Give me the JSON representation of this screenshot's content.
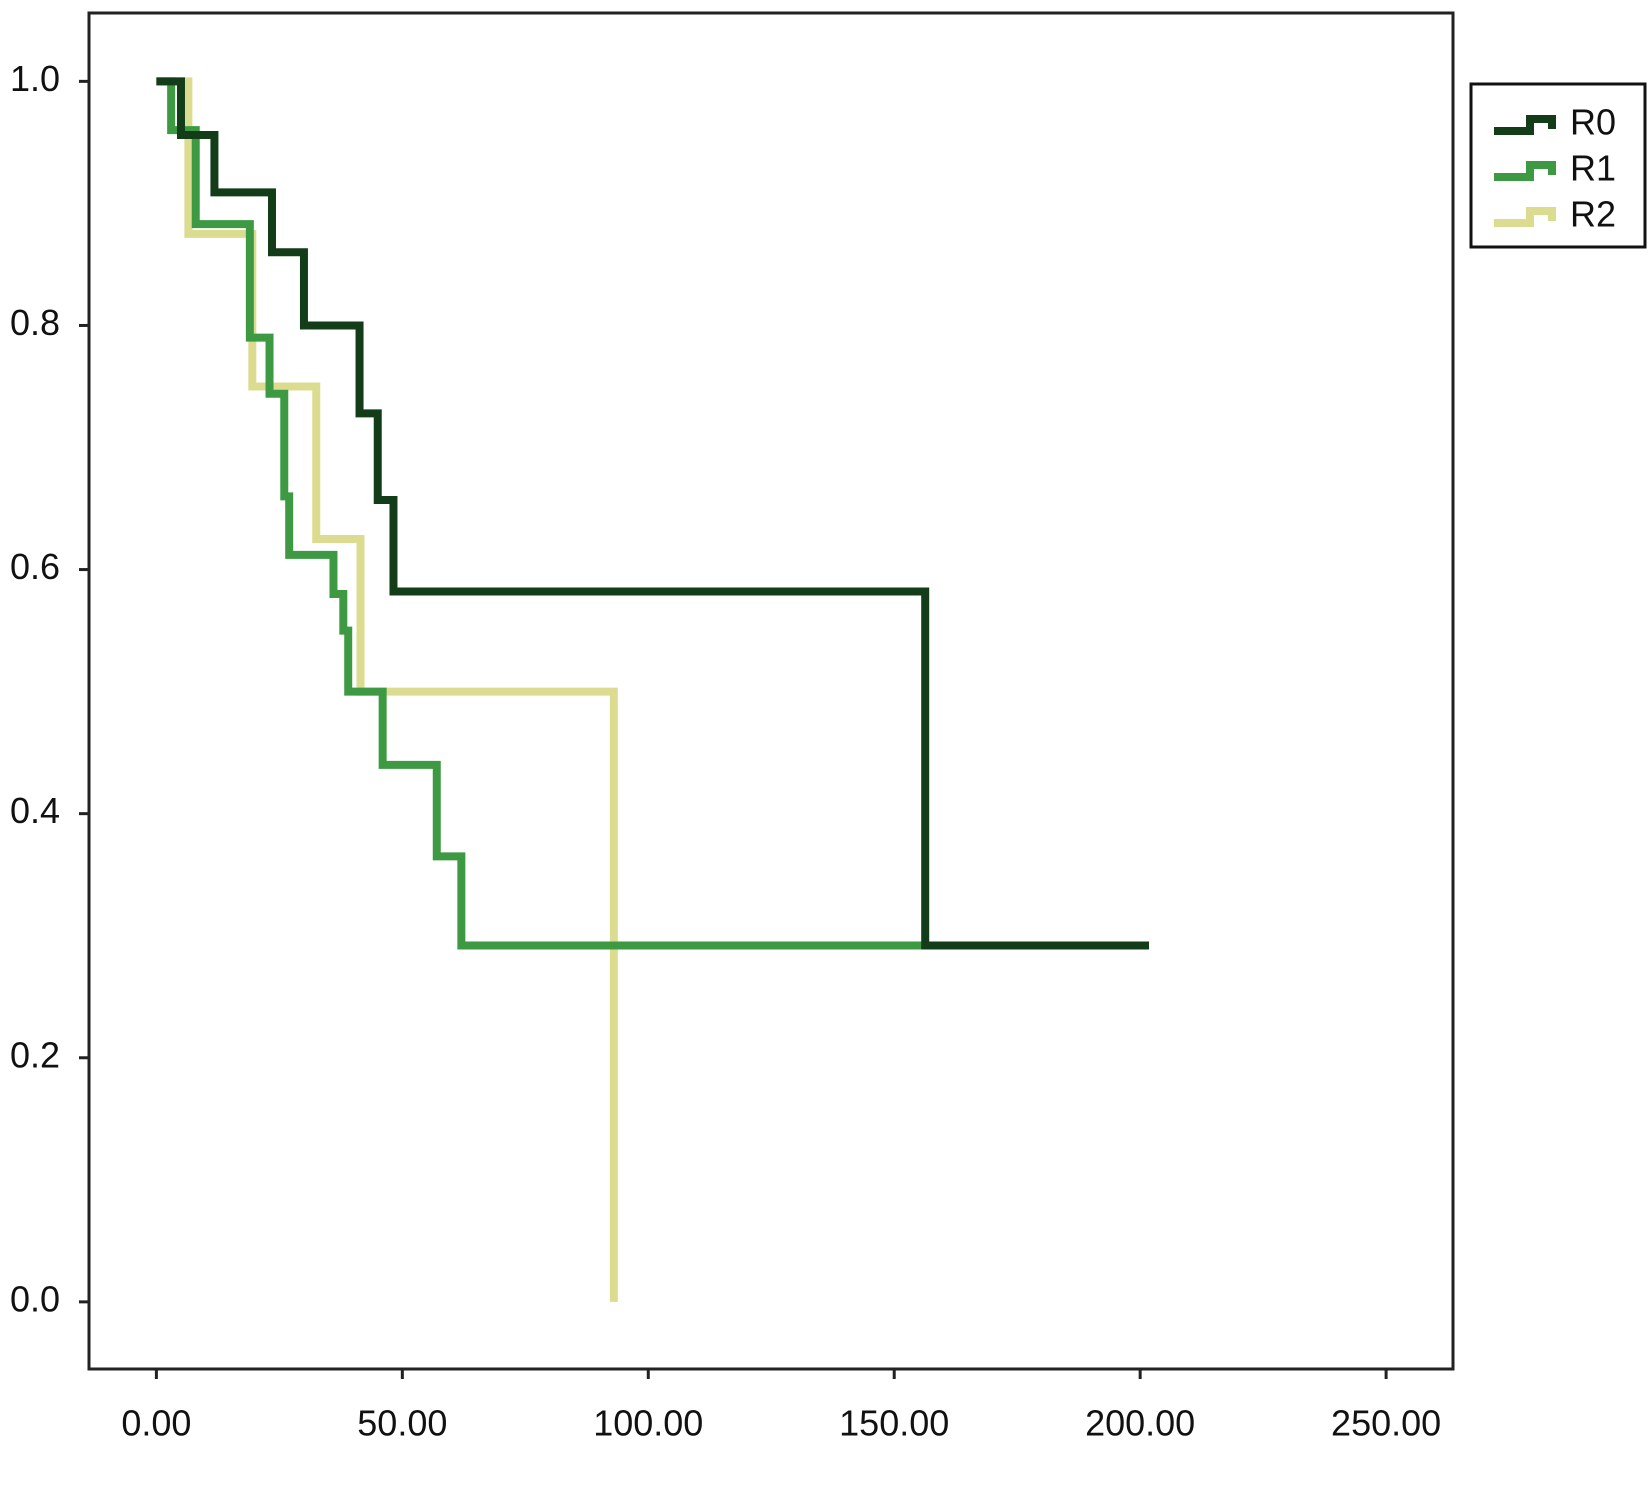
{
  "chart_data": {
    "type": "step",
    "series": [
      {
        "name": "R0",
        "color": "#123d18",
        "x": [
          0,
          5,
          11.8,
          23.5,
          30,
          41.3,
          45,
          48.2,
          156.3,
          201.8
        ],
        "values": [
          1.0,
          0.956,
          0.909,
          0.86,
          0.8,
          0.728,
          0.657,
          0.582,
          0.292,
          0.292
        ]
      },
      {
        "name": "R1",
        "color": "#3d9a42",
        "x": [
          0,
          3,
          8,
          19,
          23,
          26,
          27,
          36,
          38,
          39,
          46,
          57,
          62,
          168
        ],
        "values": [
          1.0,
          0.96,
          0.883,
          0.79,
          0.744,
          0.66,
          0.612,
          0.58,
          0.55,
          0.5,
          0.44,
          0.365,
          0.292,
          0.292
        ]
      },
      {
        "name": "R2",
        "color": "#dcdc90",
        "x": [
          0,
          6.5,
          19.5,
          32.5,
          41.5,
          93
        ],
        "values": [
          1.0,
          0.875,
          0.75,
          0.625,
          0.5,
          0.0
        ]
      }
    ],
    "xlim": [
      -13.7,
      263.6
    ],
    "ylim": [
      -0.055,
      1.056
    ],
    "xticks": [
      {
        "value": 0,
        "label": "0.00"
      },
      {
        "value": 50,
        "label": "50.00"
      },
      {
        "value": 100,
        "label": "100.00"
      },
      {
        "value": 150,
        "label": "150.00"
      },
      {
        "value": 200,
        "label": "200.00"
      },
      {
        "value": 250,
        "label": "250.00"
      }
    ],
    "yticks": [
      {
        "value": 0,
        "label": "0.0"
      },
      {
        "value": 0.2,
        "label": "0.2"
      },
      {
        "value": 0.4,
        "label": "0.4"
      },
      {
        "value": 0.6,
        "label": "0.6"
      },
      {
        "value": 0.8,
        "label": "0.8"
      },
      {
        "value": 1.0,
        "label": "1.0"
      }
    ],
    "legend": "top-right-outside"
  }
}
